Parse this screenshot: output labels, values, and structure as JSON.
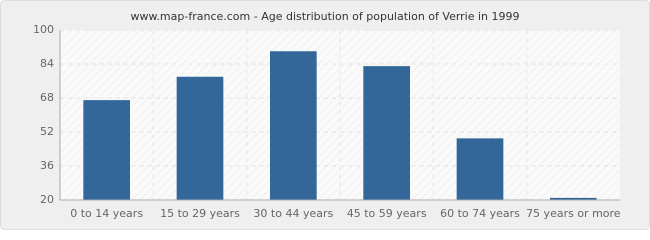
{
  "chart_data": {
    "type": "bar",
    "title": "www.map-france.com - Age distribution of population of Verrie in 1999",
    "categories": [
      "0 to 14 years",
      "15 to 29 years",
      "30 to 44 years",
      "45 to 59 years",
      "60 to 74 years",
      "75 years or more"
    ],
    "values": [
      67,
      78,
      90,
      83,
      49,
      21
    ],
    "color": "#336699",
    "ylim": [
      20,
      100
    ],
    "yticks": [
      20,
      36,
      52,
      68,
      84,
      100
    ],
    "grid": true
  }
}
